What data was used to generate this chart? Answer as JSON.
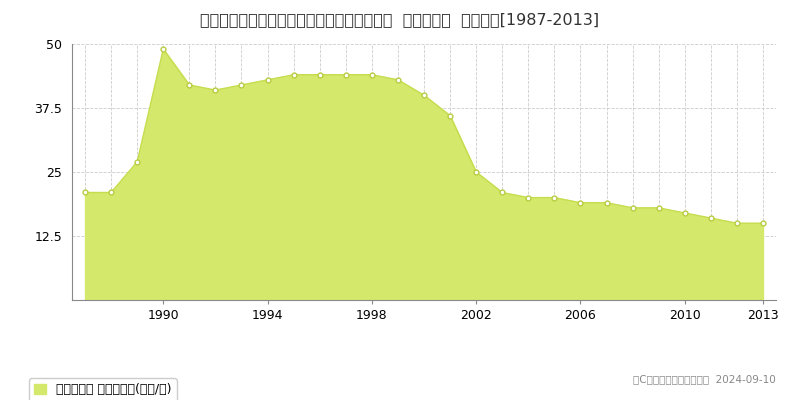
{
  "title": "兵庫県神戸市西区桜が丘東町４丁目２０番４  基準地価格  地価推移[1987-2013]",
  "years": [
    1987,
    1988,
    1989,
    1990,
    1991,
    1992,
    1993,
    1994,
    1995,
    1996,
    1997,
    1998,
    1999,
    2000,
    2001,
    2002,
    2003,
    2004,
    2005,
    2006,
    2007,
    2008,
    2009,
    2010,
    2011,
    2012,
    2013
  ],
  "values": [
    21,
    21,
    27,
    49,
    42,
    41,
    42,
    43,
    44,
    44,
    44,
    44,
    43,
    40,
    36,
    25,
    21,
    20,
    20,
    19,
    19,
    18,
    18,
    17,
    16,
    15,
    15
  ],
  "ylim": [
    0,
    50
  ],
  "yticks": [
    0,
    12.5,
    25,
    37.5,
    50
  ],
  "xticks": [
    1990,
    1994,
    1998,
    2002,
    2006,
    2010,
    2013
  ],
  "fill_color": "#d4e96b",
  "line_color": "#c8dc50",
  "marker_color": "#ffffff",
  "marker_edge_color": "#b8cc40",
  "grid_color": "#cccccc",
  "background_color": "#ffffff",
  "legend_label": "基準地価格 平均坪単価(万円/坪)",
  "copyright_text": "（C）土地価格ドットコム  2024-09-10",
  "title_fontsize": 11.5,
  "legend_fontsize": 9,
  "axis_fontsize": 9
}
